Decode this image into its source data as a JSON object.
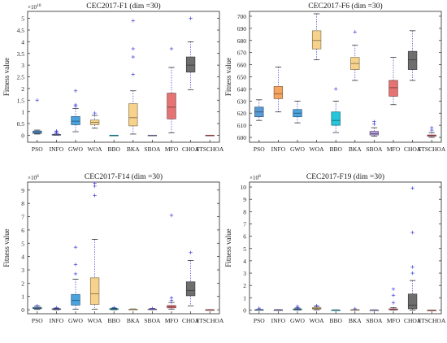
{
  "figure": {
    "description_text": ""
  },
  "chart_data": [
    {
      "type": "boxplot",
      "title": "CEC2017-F1 (dim =30)",
      "ylabel": "Fitness value",
      "exponent_label": "×10",
      "exponent_power": "10",
      "ylim": [
        -0.3,
        5.3
      ],
      "yticks": [
        0,
        0.5,
        1,
        1.5,
        2,
        2.5,
        3,
        3.5,
        4,
        4.5,
        5
      ],
      "ytick_labels": [
        "0",
        "0.5",
        "1",
        "1.5",
        "2",
        "2.5",
        "3",
        "3.5",
        "4",
        "4.5",
        "5"
      ],
      "categories": [
        "PSO",
        "INFO",
        "GWO",
        "WOA",
        "BBO",
        "BKA",
        "SBOA",
        "MFO",
        "CHOA",
        "FTSCHOA"
      ],
      "boxes": [
        {
          "name": "PSO",
          "color": "#5b9bd5",
          "min": 0.05,
          "q1": 0.08,
          "median": 0.12,
          "q3": 0.18,
          "max": 0.22,
          "outliers": [
            1.5
          ]
        },
        {
          "name": "INFO",
          "color": "#7f7fc8",
          "min": 0.0,
          "q1": 0.01,
          "median": 0.02,
          "q3": 0.03,
          "max": 0.05,
          "outliers": [
            0.1,
            0.15,
            0.18
          ]
        },
        {
          "name": "GWO",
          "color": "#4aa3df",
          "min": 0.15,
          "q1": 0.45,
          "median": 0.6,
          "q3": 0.8,
          "max": 1.15,
          "outliers": [
            1.25,
            1.3,
            1.9
          ]
        },
        {
          "name": "WOA",
          "color": "#f6d28c",
          "min": 0.3,
          "q1": 0.45,
          "median": 0.55,
          "q3": 0.65,
          "max": 0.85,
          "outliers": [
            0.95
          ]
        },
        {
          "name": "BBO",
          "color": "#26c6da",
          "min": 0.0,
          "q1": 0.0,
          "median": 0.0,
          "q3": 0.0,
          "max": 0.0,
          "outliers": []
        },
        {
          "name": "BKA",
          "color": "#f6d28c",
          "min": 0.05,
          "q1": 0.4,
          "median": 0.75,
          "q3": 1.35,
          "max": 1.9,
          "outliers": [
            2.6,
            3.35,
            3.7,
            4.9
          ]
        },
        {
          "name": "SBOA",
          "color": "#b39ddb",
          "min": 0.0,
          "q1": 0.0,
          "median": 0.0,
          "q3": 0.0,
          "max": 0.0,
          "outliers": []
        },
        {
          "name": "MFO",
          "color": "#e57373",
          "min": 0.1,
          "q1": 0.7,
          "median": 1.2,
          "q3": 1.8,
          "max": 2.9,
          "outliers": [
            3.7
          ]
        },
        {
          "name": "CHOA",
          "color": "#6e6e6e",
          "min": 1.95,
          "q1": 2.7,
          "median": 3.0,
          "q3": 3.35,
          "max": 4.0,
          "outliers": [
            5.0
          ]
        },
        {
          "name": "FTSCHOA",
          "color": "#e57373",
          "min": 0.0,
          "q1": 0.0,
          "median": 0.0,
          "q3": 0.0,
          "max": 0.0,
          "outliers": []
        }
      ]
    },
    {
      "type": "boxplot",
      "title": "CEC2017-F6 (dim =30)",
      "ylabel": "Fitness value",
      "exponent_label": "",
      "exponent_power": "",
      "ylim": [
        596,
        704
      ],
      "yticks": [
        600,
        610,
        620,
        630,
        640,
        650,
        660,
        670,
        680,
        690,
        700
      ],
      "ytick_labels": [
        "600",
        "610",
        "620",
        "630",
        "640",
        "650",
        "660",
        "670",
        "680",
        "690",
        "700"
      ],
      "categories": [
        "PSO",
        "INFO",
        "GWO",
        "WOA",
        "BBO",
        "BKA",
        "SBOA",
        "MFO",
        "CHOA",
        "FTSCHOA"
      ],
      "boxes": [
        {
          "name": "PSO",
          "color": "#5b9bd5",
          "min": 614,
          "q1": 617,
          "median": 621,
          "q3": 625,
          "max": 631,
          "outliers": []
        },
        {
          "name": "INFO",
          "color": "#f6a560",
          "min": 621,
          "q1": 632,
          "median": 636,
          "q3": 642,
          "max": 658,
          "outliers": []
        },
        {
          "name": "GWO",
          "color": "#4aa3df",
          "min": 612,
          "q1": 617,
          "median": 620,
          "q3": 623,
          "max": 630,
          "outliers": []
        },
        {
          "name": "WOA",
          "color": "#f6d28c",
          "min": 664,
          "q1": 673,
          "median": 680,
          "q3": 688,
          "max": 702,
          "outliers": []
        },
        {
          "name": "BBO",
          "color": "#26c6da",
          "min": 604,
          "q1": 610,
          "median": 614,
          "q3": 621,
          "max": 630,
          "outliers": [
            640
          ]
        },
        {
          "name": "BKA",
          "color": "#f6d28c",
          "min": 647,
          "q1": 656,
          "median": 661,
          "q3": 666,
          "max": 676,
          "outliers": [
            687
          ]
        },
        {
          "name": "SBOA",
          "color": "#b39ddb",
          "min": 601,
          "q1": 602,
          "median": 603,
          "q3": 605,
          "max": 608,
          "outliers": [
            611,
            613
          ]
        },
        {
          "name": "MFO",
          "color": "#e57373",
          "min": 627,
          "q1": 634,
          "median": 641,
          "q3": 647,
          "max": 666,
          "outliers": []
        },
        {
          "name": "CHOA",
          "color": "#6e6e6e",
          "min": 647,
          "q1": 656,
          "median": 664,
          "q3": 671,
          "max": 688,
          "outliers": []
        },
        {
          "name": "FTSCHOA",
          "color": "#e57373",
          "min": 600,
          "q1": 601,
          "median": 601.5,
          "q3": 602,
          "max": 604,
          "outliers": [
            606,
            608
          ]
        }
      ]
    },
    {
      "type": "boxplot",
      "title": "CEC2017-F14 (dim =30)",
      "ylabel": "Fitness value",
      "exponent_label": "×10",
      "exponent_power": "6",
      "ylim": [
        -0.3,
        9.6
      ],
      "yticks": [
        0,
        1,
        2,
        3,
        4,
        5,
        6,
        7,
        8,
        9
      ],
      "ytick_labels": [
        "0",
        "1",
        "2",
        "3",
        "4",
        "5",
        "6",
        "7",
        "8",
        "9"
      ],
      "categories": [
        "PSO",
        "INFO",
        "GWO",
        "WOA",
        "BBO",
        "BKA",
        "SBOA",
        "MFO",
        "CHOA",
        "FTSCHOA"
      ],
      "boxes": [
        {
          "name": "PSO",
          "color": "#5b9bd5",
          "min": 0.02,
          "q1": 0.08,
          "median": 0.12,
          "q3": 0.18,
          "max": 0.28,
          "outliers": [
            0.3
          ]
        },
        {
          "name": "INFO",
          "color": "#7f7fc8",
          "min": 0.0,
          "q1": 0.02,
          "median": 0.04,
          "q3": 0.07,
          "max": 0.12,
          "outliers": [
            0.15
          ]
        },
        {
          "name": "GWO",
          "color": "#4aa3df",
          "min": 0.05,
          "q1": 0.35,
          "median": 0.7,
          "q3": 1.15,
          "max": 2.3,
          "outliers": [
            2.7,
            3.4,
            4.7
          ]
        },
        {
          "name": "WOA",
          "color": "#f6d28c",
          "min": 0.05,
          "q1": 0.4,
          "median": 1.2,
          "q3": 2.4,
          "max": 5.3,
          "outliers": [
            8.6,
            9.3,
            9.5
          ]
        },
        {
          "name": "BBO",
          "color": "#26c6da",
          "min": 0.0,
          "q1": 0.02,
          "median": 0.04,
          "q3": 0.08,
          "max": 0.12,
          "outliers": [
            0.17
          ]
        },
        {
          "name": "BKA",
          "color": "#f6d28c",
          "min": 0.0,
          "q1": 0.01,
          "median": 0.02,
          "q3": 0.04,
          "max": 0.06,
          "outliers": []
        },
        {
          "name": "SBOA",
          "color": "#b39ddb",
          "min": 0.0,
          "q1": 0.01,
          "median": 0.03,
          "q3": 0.05,
          "max": 0.09,
          "outliers": [
            0.1
          ]
        },
        {
          "name": "MFO",
          "color": "#e57373",
          "min": 0.05,
          "q1": 0.14,
          "median": 0.22,
          "q3": 0.32,
          "max": 0.55,
          "outliers": [
            0.7,
            0.9,
            7.1
          ]
        },
        {
          "name": "CHOA",
          "color": "#6e6e6e",
          "min": 0.3,
          "q1": 1.05,
          "median": 1.45,
          "q3": 2.1,
          "max": 3.7,
          "outliers": [
            4.3
          ]
        },
        {
          "name": "FTSCHOA",
          "color": "#e57373",
          "min": 0.0,
          "q1": 0.0,
          "median": 0.0,
          "q3": 0.0,
          "max": 0.0,
          "outliers": []
        }
      ]
    },
    {
      "type": "boxplot",
      "title": "CEC2017-F19 (dim =30)",
      "ylabel": "Fitness value",
      "exponent_label": "×10",
      "exponent_power": "8",
      "ylim": [
        -0.3,
        10.4
      ],
      "yticks": [
        0,
        1,
        2,
        3,
        4,
        5,
        6,
        7,
        8,
        9,
        10
      ],
      "ytick_labels": [
        "0",
        "1",
        "2",
        "3",
        "4",
        "5",
        "6",
        "7",
        "8",
        "9",
        "10"
      ],
      "categories": [
        "PSO",
        "INFO",
        "GWO",
        "WOA",
        "BBO",
        "BKA",
        "SBOA",
        "MFO",
        "CHOA",
        "FTSCHOA"
      ],
      "boxes": [
        {
          "name": "PSO",
          "color": "#5b9bd5",
          "min": 0.0,
          "q1": 0.01,
          "median": 0.02,
          "q3": 0.03,
          "max": 0.05,
          "outliers": [
            0.15
          ]
        },
        {
          "name": "INFO",
          "color": "#7f7fc8",
          "min": 0.0,
          "q1": 0.0,
          "median": 0.01,
          "q3": 0.02,
          "max": 0.03,
          "outliers": []
        },
        {
          "name": "GWO",
          "color": "#4aa3df",
          "min": 0.0,
          "q1": 0.02,
          "median": 0.05,
          "q3": 0.09,
          "max": 0.16,
          "outliers": [
            0.2,
            0.3
          ]
        },
        {
          "name": "WOA",
          "color": "#f6d28c",
          "min": 0.02,
          "q1": 0.08,
          "median": 0.13,
          "q3": 0.2,
          "max": 0.3,
          "outliers": [
            0.35
          ]
        },
        {
          "name": "BBO",
          "color": "#26c6da",
          "min": 0.0,
          "q1": 0.0,
          "median": 0.0,
          "q3": 0.01,
          "max": 0.02,
          "outliers": []
        },
        {
          "name": "BKA",
          "color": "#f6d28c",
          "min": 0.0,
          "q1": 0.01,
          "median": 0.02,
          "q3": 0.03,
          "max": 0.04,
          "outliers": [
            0.1
          ]
        },
        {
          "name": "SBOA",
          "color": "#b39ddb",
          "min": 0.0,
          "q1": 0.0,
          "median": 0.0,
          "q3": 0.01,
          "max": 0.02,
          "outliers": []
        },
        {
          "name": "MFO",
          "color": "#e57373",
          "min": 0.0,
          "q1": 0.02,
          "median": 0.05,
          "q3": 0.1,
          "max": 0.2,
          "outliers": [
            0.6,
            1.2,
            1.7
          ]
        },
        {
          "name": "CHOA",
          "color": "#6e6e6e",
          "min": 0.0,
          "q1": 0.1,
          "median": 0.4,
          "q3": 1.3,
          "max": 2.4,
          "outliers": [
            3.0,
            3.5,
            6.3,
            9.9
          ]
        },
        {
          "name": "FTSCHOA",
          "color": "#e57373",
          "min": 0.0,
          "q1": 0.0,
          "median": 0.0,
          "q3": 0.0,
          "max": 0.0,
          "outliers": []
        }
      ]
    }
  ]
}
